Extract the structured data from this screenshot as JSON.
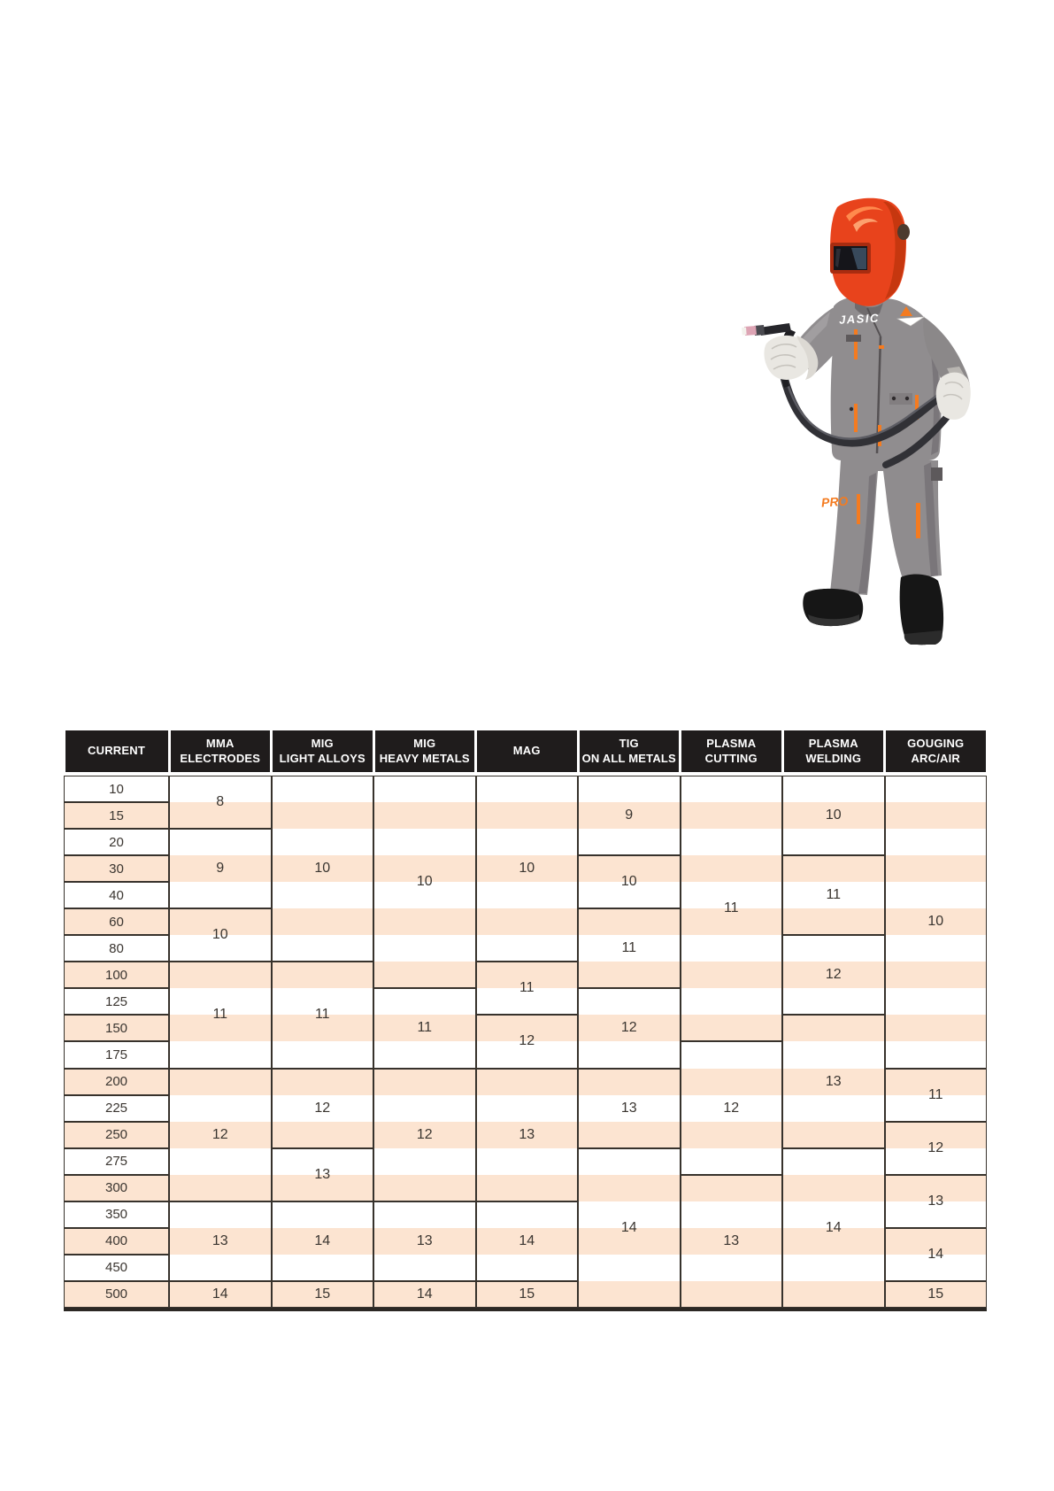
{
  "page": {
    "background": "#ffffff"
  },
  "photo": {
    "description": "Welder mannequin wearing an orange auto-darkening helmet, grey protective suit with orange trims, white gauntlet gloves, black boots, holding a TIG torch with a looped cable",
    "brand_on_chest": "JASIC",
    "thigh_label": "PRO",
    "colors": {
      "helmet": "#e8431c",
      "helmet_shadow": "#c6370f",
      "helmet_highlight": "#ff8a4d",
      "visor": "#15151a",
      "visor_glint": "#3c4f63",
      "suit": "#908d8f",
      "suit_shadow": "#7a767a",
      "accent_orange": "#f47b20",
      "glove": "#e9e7e2",
      "cable": "#313136",
      "torch_ceramic": "#dda4b4",
      "boots": "#161616"
    }
  },
  "table": {
    "header": [
      {
        "id": "current",
        "lines": [
          "CURRENT"
        ]
      },
      {
        "id": "mma-electrodes",
        "lines": [
          "MMA",
          "ELECTRODES"
        ]
      },
      {
        "id": "mig-light-alloys",
        "lines": [
          "MIG",
          "LIGHT ALLOYS"
        ]
      },
      {
        "id": "mig-heavy-metals",
        "lines": [
          "MIG",
          "HEAVY METALS"
        ]
      },
      {
        "id": "mag",
        "lines": [
          "MAG"
        ]
      },
      {
        "id": "tig-on-all-metals",
        "lines": [
          "TIG",
          "ON ALL METALS"
        ]
      },
      {
        "id": "plasma-cutting",
        "lines": [
          "PLASMA",
          "CUTTING"
        ]
      },
      {
        "id": "plasma-welding",
        "lines": [
          "PLASMA",
          "WELDING"
        ]
      },
      {
        "id": "gouging-arc-air",
        "lines": [
          "GOUGING",
          "ARC/AIR"
        ]
      }
    ],
    "currents": [
      "10",
      "15",
      "20",
      "30",
      "40",
      "60",
      "80",
      "100",
      "125",
      "150",
      "175",
      "200",
      "225",
      "250",
      "275",
      "300",
      "350",
      "400",
      "450",
      "500"
    ],
    "columns": [
      {
        "id": "mma-electrodes",
        "cells": [
          {
            "from": "10",
            "to": "15",
            "shade": "8"
          },
          {
            "from": "20",
            "to": "40",
            "shade": "9"
          },
          {
            "from": "60",
            "to": "80",
            "shade": "10"
          },
          {
            "from": "100",
            "to": "175",
            "shade": "11"
          },
          {
            "from": "200",
            "to": "300",
            "shade": "12"
          },
          {
            "from": "350",
            "to": "450",
            "shade": "13"
          },
          {
            "from": "500",
            "to": "500",
            "shade": "14"
          }
        ]
      },
      {
        "id": "mig-light-alloys",
        "cells": [
          {
            "from": "10",
            "to": "80",
            "shade": "10"
          },
          {
            "from": "100",
            "to": "175",
            "shade": "11"
          },
          {
            "from": "200",
            "to": "250",
            "shade": "12"
          },
          {
            "from": "275",
            "to": "300",
            "shade": "13"
          },
          {
            "from": "350",
            "to": "450",
            "shade": "14"
          },
          {
            "from": "500",
            "to": "500",
            "shade": "15"
          }
        ]
      },
      {
        "id": "mig-heavy-metals",
        "cells": [
          {
            "from": "10",
            "to": "100",
            "shade": "10"
          },
          {
            "from": "125",
            "to": "175",
            "shade": "11"
          },
          {
            "from": "200",
            "to": "300",
            "shade": "12"
          },
          {
            "from": "350",
            "to": "450",
            "shade": "13"
          },
          {
            "from": "500",
            "to": "500",
            "shade": "14"
          }
        ]
      },
      {
        "id": "mag",
        "cells": [
          {
            "from": "10",
            "to": "80",
            "shade": "10"
          },
          {
            "from": "100",
            "to": "125",
            "shade": "11"
          },
          {
            "from": "150",
            "to": "175",
            "shade": "12"
          },
          {
            "from": "200",
            "to": "300",
            "shade": "13"
          },
          {
            "from": "350",
            "to": "450",
            "shade": "14"
          },
          {
            "from": "500",
            "to": "500",
            "shade": "15"
          }
        ]
      },
      {
        "id": "tig-on-all-metals",
        "cells": [
          {
            "from": "10",
            "to": "20",
            "shade": "9"
          },
          {
            "from": "30",
            "to": "40",
            "shade": "10"
          },
          {
            "from": "60",
            "to": "100",
            "shade": "11"
          },
          {
            "from": "125",
            "to": "175",
            "shade": "12"
          },
          {
            "from": "200",
            "to": "250",
            "shade": "13"
          },
          {
            "from": "275",
            "to": "500",
            "shade": "14"
          }
        ]
      },
      {
        "id": "plasma-cutting",
        "cells": [
          {
            "from": "10",
            "to": "150",
            "shade": "11"
          },
          {
            "from": "175",
            "to": "275",
            "shade": "12"
          },
          {
            "from": "300",
            "to": "500",
            "shade": "13"
          }
        ]
      },
      {
        "id": "plasma-welding",
        "cells": [
          {
            "from": "10",
            "to": "20",
            "shade": "10"
          },
          {
            "from": "30",
            "to": "60",
            "shade": "11"
          },
          {
            "from": "80",
            "to": "125",
            "shade": "12"
          },
          {
            "from": "150",
            "to": "250",
            "shade": "13"
          },
          {
            "from": "275",
            "to": "500",
            "shade": "14"
          }
        ]
      },
      {
        "id": "gouging-arc-air",
        "cells": [
          {
            "from": "10",
            "to": "175",
            "shade": "10"
          },
          {
            "from": "200",
            "to": "225",
            "shade": "11"
          },
          {
            "from": "250",
            "to": "275",
            "shade": "12"
          },
          {
            "from": "300",
            "to": "350",
            "shade": "13"
          },
          {
            "from": "400",
            "to": "450",
            "shade": "14"
          },
          {
            "from": "500",
            "to": "500",
            "shade": "15"
          }
        ]
      }
    ],
    "colors": {
      "header_bg": "#1f1c1c",
      "header_text": "#ffffff",
      "stripe": "#fce4d1",
      "border": "#37322c",
      "value_text": "#3a3530"
    }
  }
}
